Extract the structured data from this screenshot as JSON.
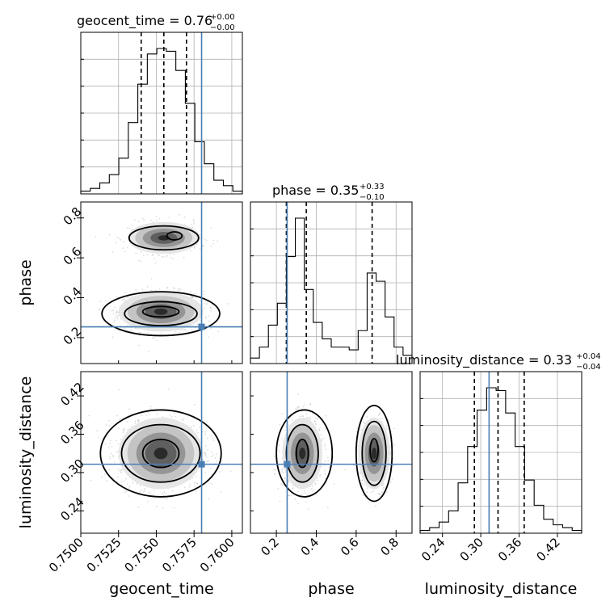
{
  "chart_data": {
    "type": "corner",
    "params": [
      "geocent_time",
      "phase",
      "luminosity_distance"
    ],
    "truths": [
      0.758,
      0.254,
      0.313
    ],
    "axes": {
      "geocent_time": {
        "range": [
          0.75,
          0.7607
        ],
        "ticks": [
          0.75,
          0.7525,
          0.755,
          0.7575,
          0.76
        ],
        "ticklabels": [
          "0.7500",
          "0.7525",
          "0.7550",
          "0.7575",
          "0.7600"
        ]
      },
      "phase": {
        "range": [
          0.07,
          0.88
        ],
        "ticks": [
          0.2,
          0.4,
          0.6,
          0.8
        ],
        "ticklabels": [
          "0.2",
          "0.4",
          "0.6",
          "0.8"
        ]
      },
      "luminosity_distance": {
        "range": [
          0.205,
          0.458
        ],
        "ticks": [
          0.24,
          0.3,
          0.36,
          0.42
        ],
        "ticklabels": [
          "0.24",
          "0.30",
          "0.36",
          "0.42"
        ]
      }
    },
    "axis_labels": [
      "geocent_time",
      "phase",
      "luminosity_distance"
    ],
    "titles": [
      {
        "text": "geocent_time = 0.76",
        "upper": "+0.00",
        "lower": "−0.00"
      },
      {
        "text": "phase = 0.35",
        "upper": "+0.33",
        "lower": "−0.10"
      },
      {
        "text": "luminosity_distance = 0.33",
        "upper": "+0.04",
        "lower": "−0.04"
      }
    ],
    "histograms": [
      {
        "param": "geocent_time",
        "values": [
          1,
          2,
          4,
          7,
          13,
          26,
          40,
          51,
          53,
          52,
          45,
          33,
          19,
          11,
          5,
          3,
          1
        ],
        "quantiles": [
          0.754,
          0.7555,
          0.757
        ]
      },
      {
        "param": "phase",
        "values": [
          2,
          6,
          14,
          22,
          39,
          53,
          27,
          15,
          9,
          6,
          6,
          5,
          12,
          33,
          30,
          17,
          6,
          3
        ],
        "quantiles": [
          0.25,
          0.35,
          0.68
        ]
      },
      {
        "param": "luminosity_distance",
        "values": [
          1,
          2,
          4,
          8,
          18,
          31,
          44,
          52,
          51,
          43,
          31,
          19,
          10,
          5,
          3,
          2,
          1
        ],
        "quantiles": [
          0.29,
          0.327,
          0.368
        ]
      }
    ],
    "grid": true,
    "colors": {
      "truth": "#4a7fb5",
      "histogram": "#000000"
    }
  }
}
